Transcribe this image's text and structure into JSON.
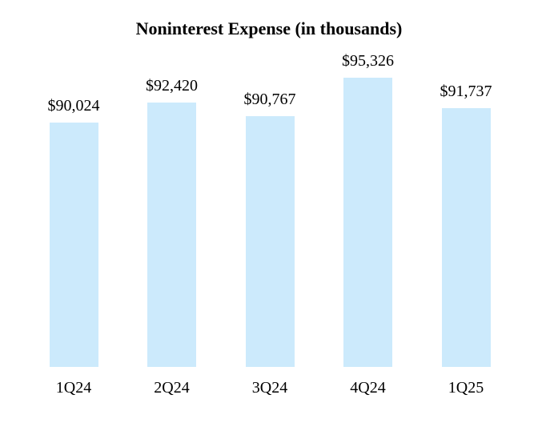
{
  "page": {
    "background_color": "#ffffff",
    "text_color": "#000000"
  },
  "chart_data": {
    "type": "bar",
    "title": "Noninterest Expense (in thousands)",
    "categories": [
      "1Q24",
      "2Q24",
      "3Q24",
      "4Q24",
      "1Q25"
    ],
    "values": [
      90024,
      92420,
      90767,
      95326,
      91737
    ],
    "value_labels": [
      "$90,024",
      "$92,420",
      "$90,767",
      "$95,326",
      "$91,737"
    ],
    "xlabel": "",
    "ylabel": "",
    "ylim": [
      61000,
      96000
    ],
    "grid": false,
    "legend_position": "none",
    "axis_lines": false,
    "bar_color": "#cceafc",
    "label_color": "#000000"
  }
}
